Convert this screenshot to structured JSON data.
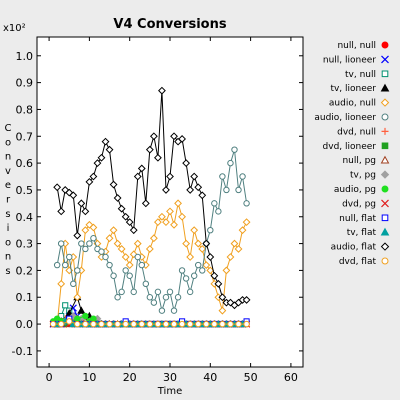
{
  "chart_data": {
    "type": "line",
    "title": "V4 Conversions",
    "xlabel": "Time",
    "ylabel": "Conversions",
    "y_multiplier": "x10²",
    "xlim": [
      -3,
      63
    ],
    "ylim": [
      -0.16,
      1.07
    ],
    "x_ticks": [
      0,
      10,
      20,
      30,
      40,
      50,
      60
    ],
    "y_ticks": [
      -0.1,
      0.0,
      0.1,
      0.2,
      0.3,
      0.4,
      0.5,
      0.6,
      0.7,
      0.8,
      0.9,
      1.0
    ],
    "y_tick_labels": [
      "-0.1",
      "0.0",
      "0.1",
      "0.2",
      "0.3",
      "0.4",
      "0.5",
      "0.6",
      "0.7",
      "0.8",
      "0.9",
      "1.0"
    ],
    "grid": false,
    "legend_position": "right",
    "series": [
      {
        "name": "null, null",
        "color": "#ff0000",
        "marker": "circle-filled",
        "x": [
          1,
          2,
          3,
          4,
          5,
          6,
          7,
          8,
          9,
          10,
          11,
          12,
          13,
          14,
          15,
          16,
          17,
          18,
          19,
          20,
          21,
          22,
          23,
          24,
          25,
          26,
          27,
          28,
          29,
          30,
          31,
          32,
          33,
          34,
          35,
          36,
          37,
          38,
          39,
          40,
          41,
          42,
          43,
          44,
          45,
          46,
          47,
          48,
          49
        ],
        "y": [
          0,
          0,
          0,
          0,
          0,
          0,
          0,
          0,
          0,
          0,
          0,
          0,
          0,
          0,
          0,
          0,
          0,
          0,
          0,
          0,
          0,
          0,
          0,
          0,
          0,
          0,
          0,
          0,
          0,
          0,
          0,
          0,
          0,
          0,
          0,
          0,
          0,
          0,
          0,
          0,
          0,
          0,
          0,
          0,
          0,
          0,
          0,
          0,
          0
        ]
      },
      {
        "name": "null, lioneer",
        "color": "#0000ff",
        "marker": "x",
        "x": [
          2,
          4,
          5,
          6,
          7,
          8,
          10,
          12,
          14,
          17,
          20,
          22,
          24,
          26,
          28,
          30,
          32,
          34,
          36,
          38,
          40,
          42,
          44,
          46,
          48
        ],
        "y": [
          0,
          0.02,
          0.05,
          0.06,
          0.03,
          0.01,
          0,
          0,
          0,
          0,
          0,
          0,
          0,
          0,
          0,
          0,
          0,
          0,
          0,
          0,
          0,
          0,
          0,
          0,
          0
        ]
      },
      {
        "name": "tv, null",
        "color": "#009070",
        "marker": "square-open",
        "x": [
          3,
          4,
          5,
          6,
          7,
          8,
          9,
          10
        ],
        "y": [
          0.03,
          0.07,
          0.05,
          0.02,
          0.01,
          0.01,
          0,
          0
        ]
      },
      {
        "name": "tv, lioneer",
        "color": "#000000",
        "marker": "triangle-filled",
        "x": [
          3,
          5,
          7,
          8,
          9,
          10,
          11,
          12,
          13
        ],
        "y": [
          0.01,
          0.04,
          0.1,
          0.05,
          0.02,
          0.03,
          0.01,
          0,
          0
        ]
      },
      {
        "name": "audio, null",
        "color": "#f0a020",
        "marker": "diamond-open",
        "x": [
          2,
          3,
          4,
          5,
          6,
          7,
          8,
          9,
          10,
          11,
          12,
          13,
          14,
          15,
          16,
          17,
          18,
          19,
          20,
          21,
          22,
          23,
          24,
          25,
          26,
          27,
          28,
          29,
          30,
          31,
          32,
          33,
          34,
          35,
          36,
          37,
          38,
          39,
          40,
          41,
          42,
          43,
          44,
          45,
          46,
          47,
          48,
          49
        ],
        "y": [
          0,
          0.15,
          0.3,
          0.2,
          0.25,
          0.1,
          0.2,
          0.35,
          0.37,
          0.36,
          0.3,
          0.25,
          0.27,
          0.32,
          0.35,
          0.3,
          0.28,
          0.25,
          0.22,
          0.26,
          0.3,
          0.25,
          0.22,
          0.28,
          0.32,
          0.38,
          0.4,
          0.38,
          0.42,
          0.37,
          0.45,
          0.4,
          0.3,
          0.25,
          0.35,
          0.3,
          0.28,
          0.22,
          0.2,
          0.15,
          0.1,
          0.05,
          0.2,
          0.25,
          0.3,
          0.28,
          0.35,
          0.38
        ]
      },
      {
        "name": "audio, lioneer",
        "color": "#508080",
        "marker": "circle-open",
        "x": [
          2,
          3,
          4,
          5,
          6,
          7,
          8,
          9,
          10,
          11,
          12,
          13,
          14,
          15,
          16,
          17,
          18,
          19,
          20,
          21,
          22,
          23,
          24,
          25,
          26,
          27,
          28,
          29,
          30,
          31,
          32,
          33,
          34,
          35,
          36,
          37,
          38,
          39,
          40,
          41,
          42,
          43,
          44,
          45,
          46,
          47,
          48,
          49
        ],
        "y": [
          0.22,
          0.3,
          0.22,
          0.25,
          0.15,
          0.2,
          0.3,
          0.28,
          0.3,
          0.32,
          0.28,
          0.27,
          0.25,
          0.22,
          0.18,
          0.1,
          0.12,
          0.2,
          0.18,
          0.12,
          0.25,
          0.22,
          0.15,
          0.1,
          0.08,
          0.12,
          0.05,
          0.1,
          0.12,
          0.05,
          0.1,
          0.2,
          0.17,
          0.12,
          0.18,
          0.22,
          0.2,
          0.3,
          0.35,
          0.45,
          0.42,
          0.55,
          0.5,
          0.6,
          0.65,
          0.5,
          0.55,
          0.45
        ]
      },
      {
        "name": "dvd, null",
        "color": "#ff6040",
        "marker": "plus",
        "x": [
          3,
          4,
          5,
          6,
          7,
          8,
          9,
          10,
          12,
          14,
          16,
          18,
          20,
          22,
          24,
          26,
          28,
          30,
          32,
          34,
          36,
          38,
          40,
          42,
          44,
          46,
          48
        ],
        "y": [
          0.01,
          0.02,
          0.01,
          0.02,
          0.01,
          0.01,
          0,
          0,
          0,
          0,
          0,
          0,
          0,
          0,
          0,
          0,
          0,
          0,
          0,
          0,
          0,
          0,
          0,
          0,
          0,
          0,
          0
        ]
      },
      {
        "name": "dvd, lioneer",
        "color": "#20a020",
        "marker": "square-filled",
        "x": [
          2,
          3,
          4,
          6,
          8,
          10,
          12,
          14,
          16,
          18,
          20,
          22,
          24,
          26,
          28,
          30,
          32,
          34,
          36,
          38,
          40,
          42,
          44,
          46,
          48
        ],
        "y": [
          0,
          0.01,
          0,
          0,
          0,
          0,
          0,
          0,
          0,
          0,
          0,
          0,
          0,
          0,
          0,
          0,
          0,
          0,
          0,
          0,
          0,
          0,
          0,
          0,
          0
        ]
      },
      {
        "name": "null, pg",
        "color": "#a04020",
        "marker": "triangle-open",
        "x": [
          3,
          5,
          7,
          9,
          11,
          13,
          15,
          17,
          19,
          21,
          23,
          25,
          27,
          29,
          31,
          33,
          35,
          37,
          39,
          41,
          43,
          45,
          47
        ],
        "y": [
          0,
          0.01,
          0.02,
          0.01,
          0,
          0,
          0,
          0,
          0,
          0,
          0,
          0,
          0,
          0,
          0,
          0,
          0,
          0,
          0,
          0,
          0,
          0,
          0
        ]
      },
      {
        "name": "tv, pg",
        "color": "#a0a0a0",
        "marker": "diamond-filled",
        "x": [
          4,
          6,
          8,
          10,
          12,
          14,
          16,
          18,
          20,
          22,
          24,
          26,
          28,
          30,
          32,
          34,
          36,
          38,
          40,
          42,
          44,
          46,
          48
        ],
        "y": [
          0.01,
          0.03,
          0.02,
          0.01,
          0.02,
          0,
          0,
          0,
          0,
          0,
          0,
          0,
          0,
          0,
          0,
          0,
          0,
          0,
          0,
          0,
          0,
          0,
          0
        ]
      },
      {
        "name": "audio, pg",
        "color": "#20e020",
        "marker": "circle-filled",
        "x": [
          1,
          2,
          3,
          5,
          7,
          9,
          10,
          11,
          13,
          15,
          17,
          19,
          21,
          23,
          25,
          27,
          29,
          31,
          33,
          35,
          37,
          39,
          41,
          43,
          45,
          47
        ],
        "y": [
          0.01,
          0.02,
          0.01,
          0.01,
          0.02,
          0.03,
          0.01,
          0.02,
          0,
          0,
          0,
          0,
          0,
          0,
          0,
          0,
          0,
          0,
          0,
          0,
          0,
          0,
          0,
          0,
          0,
          0
        ]
      },
      {
        "name": "dvd, pg",
        "color": "#e02020",
        "marker": "x",
        "x": [
          1,
          3,
          5,
          7,
          9,
          11,
          13,
          15,
          17,
          19,
          21,
          23,
          25,
          27,
          29,
          31,
          33,
          35,
          37,
          39,
          41,
          43,
          45,
          47,
          49
        ],
        "y": [
          0,
          0,
          0,
          0,
          0,
          0,
          0,
          0,
          0,
          0,
          0,
          0,
          0,
          0,
          0,
          0,
          0,
          0,
          0,
          0,
          0,
          0,
          0,
          0,
          0
        ]
      },
      {
        "name": "null, flat",
        "color": "#0000ff",
        "marker": "square-open",
        "x": [
          1,
          3,
          5,
          7,
          9,
          11,
          13,
          15,
          17,
          19,
          21,
          23,
          25,
          27,
          29,
          31,
          33,
          35,
          37,
          39,
          41,
          43,
          45,
          47,
          49
        ],
        "y": [
          0,
          0,
          0.02,
          0,
          0,
          0,
          0,
          0,
          0,
          0.01,
          0,
          0,
          0,
          0,
          0,
          0,
          0.01,
          0,
          0,
          0,
          0,
          0,
          0,
          0,
          0.01
        ]
      },
      {
        "name": "tv, flat",
        "color": "#00a0a0",
        "marker": "triangle-filled",
        "x": [
          2,
          4,
          6,
          8,
          10,
          12,
          14,
          16,
          18,
          20,
          22,
          24,
          26,
          28,
          30,
          32,
          34,
          36,
          38,
          40,
          42,
          44,
          46,
          48
        ],
        "y": [
          0,
          0.01,
          0,
          0,
          0,
          0,
          0,
          0,
          0,
          0,
          0,
          0,
          0,
          0,
          0,
          0,
          0,
          0,
          0,
          0,
          0,
          0,
          0,
          0
        ]
      },
      {
        "name": "audio, flat",
        "color": "#000000",
        "marker": "diamond-open",
        "x": [
          2,
          3,
          4,
          5,
          6,
          7,
          8,
          9,
          10,
          11,
          12,
          13,
          14,
          15,
          16,
          17,
          18,
          19,
          20,
          21,
          22,
          23,
          24,
          25,
          26,
          27,
          28,
          29,
          30,
          31,
          32,
          33,
          34,
          35,
          36,
          37,
          38,
          39,
          40,
          41,
          42,
          43,
          44,
          45,
          46,
          47,
          48,
          49
        ],
        "y": [
          0.51,
          0.42,
          0.5,
          0.49,
          0.48,
          0.33,
          0.45,
          0.42,
          0.53,
          0.55,
          0.6,
          0.62,
          0.68,
          0.65,
          0.52,
          0.47,
          0.43,
          0.4,
          0.38,
          0.35,
          0.55,
          0.58,
          0.45,
          0.65,
          0.7,
          0.62,
          0.87,
          0.5,
          0.55,
          0.7,
          0.68,
          0.69,
          0.6,
          0.5,
          0.55,
          0.51,
          0.48,
          0.3,
          0.25,
          0.18,
          0.15,
          0.1,
          0.08,
          0.08,
          0.07,
          0.08,
          0.09,
          0.09
        ]
      },
      {
        "name": "dvd, flat",
        "color": "#f0a020",
        "marker": "circle-open",
        "x": [
          1,
          3,
          5,
          7,
          9,
          11,
          13,
          15,
          17,
          19,
          21,
          23,
          25,
          27,
          29,
          31,
          33,
          35,
          37,
          39,
          41,
          43,
          45,
          47,
          49
        ],
        "y": [
          0,
          0,
          0.01,
          0,
          0,
          0,
          0,
          0,
          0,
          0,
          0,
          0,
          0,
          0,
          0,
          0,
          0,
          0,
          0,
          0,
          0,
          0,
          0,
          0,
          0
        ]
      }
    ]
  }
}
